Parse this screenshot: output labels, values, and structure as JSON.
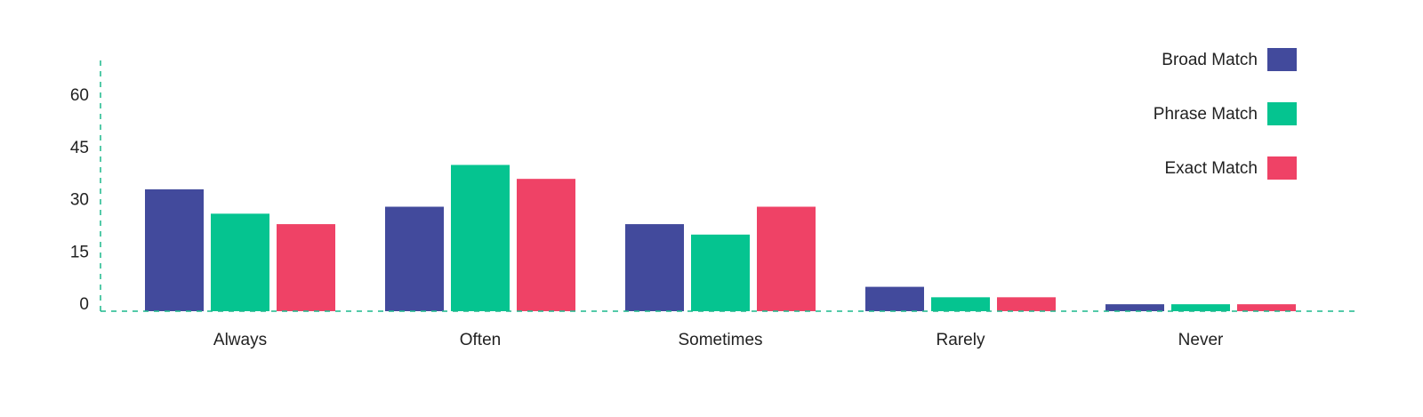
{
  "chart_data": {
    "type": "bar",
    "categories": [
      "Always",
      "Often",
      "Sometimes",
      "Rarely",
      "Never"
    ],
    "series": [
      {
        "name": "Broad Match",
        "color": "#424a9c",
        "values": [
          35,
          30,
          25,
          7,
          2
        ]
      },
      {
        "name": "Phrase Match",
        "color": "#05c490",
        "values": [
          28,
          42,
          22,
          4,
          2
        ]
      },
      {
        "name": "Exact Match",
        "color": "#ef4266",
        "values": [
          25,
          38,
          30,
          4,
          2
        ]
      }
    ],
    "ylim": [
      0,
      72
    ],
    "yticks": [
      0,
      15,
      30,
      45,
      60
    ],
    "axis_color": "#1bb88c",
    "legend": "top-right"
  }
}
